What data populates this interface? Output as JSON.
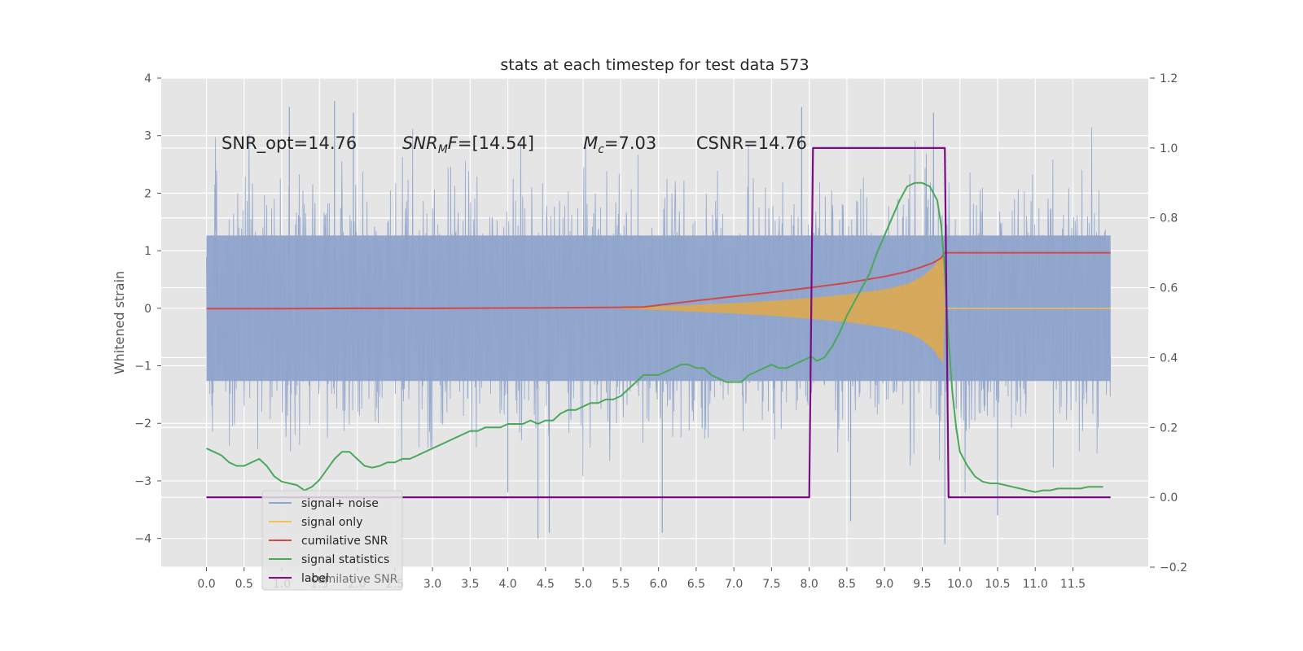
{
  "chart_data": {
    "type": "line",
    "title": "stats at each timestep for test data 573",
    "ylabel": "Whitened strain",
    "y2label": "",
    "xlim": [
      -0.6,
      12.5
    ],
    "ylim": [
      -4.5,
      4.0
    ],
    "y2lim": [
      -0.2,
      1.2
    ],
    "grid": true,
    "x_ticks": [
      "0.0",
      "0.5",
      "1.0",
      "1.5",
      "2.0",
      "2.5",
      "3.0",
      "3.5",
      "4.0",
      "4.5",
      "5.0",
      "5.5",
      "6.0",
      "6.5",
      "7.0",
      "7.5",
      "8.0",
      "8.5",
      "9.0",
      "9.5",
      "10.0",
      "10.5",
      "11.0",
      "11.5"
    ],
    "y_ticks": [
      "4",
      "3",
      "2",
      "1",
      "0",
      "−1",
      "−2",
      "−3",
      "−4"
    ],
    "y2_ticks": [
      "1.2",
      "1.0",
      "0.8",
      "0.6",
      "0.4",
      "0.2",
      "0.0",
      "−0.2"
    ],
    "annotations": [
      {
        "text": "SNR_opt=14.76",
        "x": 0.2,
        "y": 2.8
      },
      {
        "pre": "SNR",
        "sub": "M",
        "post": "F=[14.54]",
        "x": 2.6,
        "y": 2.8
      },
      {
        "pre": "M",
        "sub": "c",
        "post": "=7.03",
        "x": 5.0,
        "y": 2.8
      },
      {
        "text": "CSNR=14.76",
        "x": 6.5,
        "y": 2.8
      }
    ],
    "legend": {
      "placement": "lower-left",
      "entries": [
        {
          "name": "signal+ noise",
          "color": "#8fa4cc"
        },
        {
          "name": "signal only",
          "color": "#f2c052"
        },
        {
          "name": "cumilative SNR",
          "color": "#d1484a"
        },
        {
          "name": "signal statistics",
          "color": "#4aa85a"
        },
        {
          "name": "label",
          "color": "#7b0c82"
        }
      ],
      "ghost_text": "cumilative SNR"
    },
    "series": [
      {
        "name": "signal+ noise",
        "axis": "left",
        "style": "noise-band",
        "x_range": [
          0.0,
          12.0
        ],
        "envelope": [
          -2.3,
          2.3
        ],
        "typical_peak": 3.2,
        "extremes": [
          {
            "x": 4.4,
            "y": -4.0
          },
          {
            "x": 4.55,
            "y": -3.9
          },
          {
            "x": 6.05,
            "y": -3.9
          },
          {
            "x": 9.8,
            "y": -4.1
          },
          {
            "x": 10.5,
            "y": -3.6
          },
          {
            "x": 7.9,
            "y": 3.5
          },
          {
            "x": 1.7,
            "y": 3.6
          },
          {
            "x": 1.95,
            "y": 3.4
          },
          {
            "x": 9.65,
            "y": 3.4
          },
          {
            "x": 1.1,
            "y": 3.5
          },
          {
            "x": 8.55,
            "y": -3.7
          },
          {
            "x": 4.0,
            "y": -3.2
          }
        ]
      },
      {
        "name": "signal only",
        "axis": "left",
        "style": "chirp",
        "x": [
          5.5,
          6.0,
          6.5,
          7.0,
          7.5,
          8.0,
          8.5,
          9.0,
          9.3,
          9.5,
          9.65,
          9.72,
          9.78,
          9.8
        ],
        "y_envelope": [
          0.01,
          0.03,
          0.06,
          0.09,
          0.13,
          0.18,
          0.24,
          0.33,
          0.42,
          0.55,
          0.72,
          0.85,
          0.95,
          0.0
        ],
        "flat_after": [
          9.8,
          12.0,
          0.0
        ]
      },
      {
        "name": "cumilative SNR",
        "axis": "right",
        "x": [
          0.0,
          1.0,
          2.0,
          3.0,
          4.0,
          5.0,
          5.5,
          5.8,
          6.0,
          6.5,
          7.0,
          7.5,
          8.0,
          8.5,
          9.0,
          9.3,
          9.5,
          9.65,
          9.75,
          9.8,
          9.82,
          12.0
        ],
        "y": [
          0.54,
          0.54,
          0.541,
          0.541,
          0.542,
          0.543,
          0.544,
          0.545,
          0.55,
          0.563,
          0.575,
          0.587,
          0.6,
          0.614,
          0.632,
          0.646,
          0.66,
          0.672,
          0.685,
          0.7,
          0.7,
          0.7
        ]
      },
      {
        "name": "signal statistics",
        "axis": "right",
        "x": [
          0.0,
          0.1,
          0.2,
          0.3,
          0.4,
          0.5,
          0.6,
          0.7,
          0.8,
          0.9,
          1.0,
          1.1,
          1.2,
          1.3,
          1.4,
          1.5,
          1.6,
          1.7,
          1.8,
          1.9,
          2.0,
          2.1,
          2.2,
          2.3,
          2.4,
          2.5,
          2.6,
          2.7,
          2.8,
          2.9,
          3.0,
          3.1,
          3.2,
          3.3,
          3.4,
          3.5,
          3.6,
          3.7,
          3.8,
          3.9,
          4.0,
          4.1,
          4.2,
          4.3,
          4.4,
          4.5,
          4.6,
          4.7,
          4.8,
          4.9,
          5.0,
          5.1,
          5.2,
          5.3,
          5.4,
          5.5,
          5.6,
          5.7,
          5.8,
          5.9,
          6.0,
          6.1,
          6.2,
          6.3,
          6.4,
          6.5,
          6.6,
          6.7,
          6.8,
          6.9,
          7.0,
          7.1,
          7.2,
          7.3,
          7.4,
          7.5,
          7.6,
          7.7,
          7.8,
          7.9,
          8.0,
          8.05,
          8.1,
          8.2,
          8.3,
          8.4,
          8.5,
          8.6,
          8.7,
          8.8,
          8.9,
          9.0,
          9.1,
          9.2,
          9.3,
          9.4,
          9.5,
          9.6,
          9.7,
          9.75,
          9.8,
          9.85,
          9.9,
          9.95,
          10.0,
          10.1,
          10.2,
          10.3,
          10.4,
          10.5,
          10.6,
          10.7,
          10.8,
          10.9,
          11.0,
          11.1,
          11.2,
          11.3,
          11.4,
          11.5,
          11.6,
          11.7,
          11.8,
          11.9
        ],
        "y": [
          0.14,
          0.13,
          0.12,
          0.1,
          0.09,
          0.09,
          0.1,
          0.11,
          0.09,
          0.06,
          0.045,
          0.04,
          0.035,
          0.02,
          0.03,
          0.05,
          0.08,
          0.11,
          0.13,
          0.13,
          0.11,
          0.09,
          0.085,
          0.09,
          0.1,
          0.1,
          0.11,
          0.11,
          0.12,
          0.13,
          0.14,
          0.15,
          0.16,
          0.17,
          0.18,
          0.19,
          0.19,
          0.2,
          0.2,
          0.2,
          0.21,
          0.21,
          0.21,
          0.22,
          0.21,
          0.22,
          0.22,
          0.24,
          0.25,
          0.25,
          0.26,
          0.27,
          0.27,
          0.28,
          0.28,
          0.29,
          0.31,
          0.33,
          0.35,
          0.35,
          0.35,
          0.36,
          0.37,
          0.38,
          0.38,
          0.37,
          0.37,
          0.35,
          0.34,
          0.33,
          0.33,
          0.33,
          0.35,
          0.36,
          0.37,
          0.38,
          0.37,
          0.37,
          0.38,
          0.39,
          0.4,
          0.4,
          0.39,
          0.4,
          0.43,
          0.47,
          0.52,
          0.56,
          0.6,
          0.64,
          0.7,
          0.75,
          0.8,
          0.85,
          0.89,
          0.9,
          0.9,
          0.89,
          0.85,
          0.78,
          0.65,
          0.45,
          0.3,
          0.2,
          0.13,
          0.09,
          0.06,
          0.045,
          0.04,
          0.04,
          0.035,
          0.03,
          0.025,
          0.02,
          0.015,
          0.02,
          0.02,
          0.025,
          0.025,
          0.025,
          0.025,
          0.03,
          0.03,
          0.03
        ]
      },
      {
        "name": "label",
        "axis": "right",
        "x": [
          0.0,
          8.0,
          8.05,
          9.8,
          9.85,
          12.0
        ],
        "y": [
          0.0,
          0.0,
          1.0,
          1.0,
          0.0,
          0.0
        ]
      }
    ]
  },
  "colors": {
    "plot_bg": "#e5e5e5",
    "grid": "#ffffff",
    "noise": "#8fa4cc",
    "signal": "#f2c052",
    "csnr": "#d1484a",
    "stats": "#4aa85a",
    "label": "#7b0c82"
  }
}
